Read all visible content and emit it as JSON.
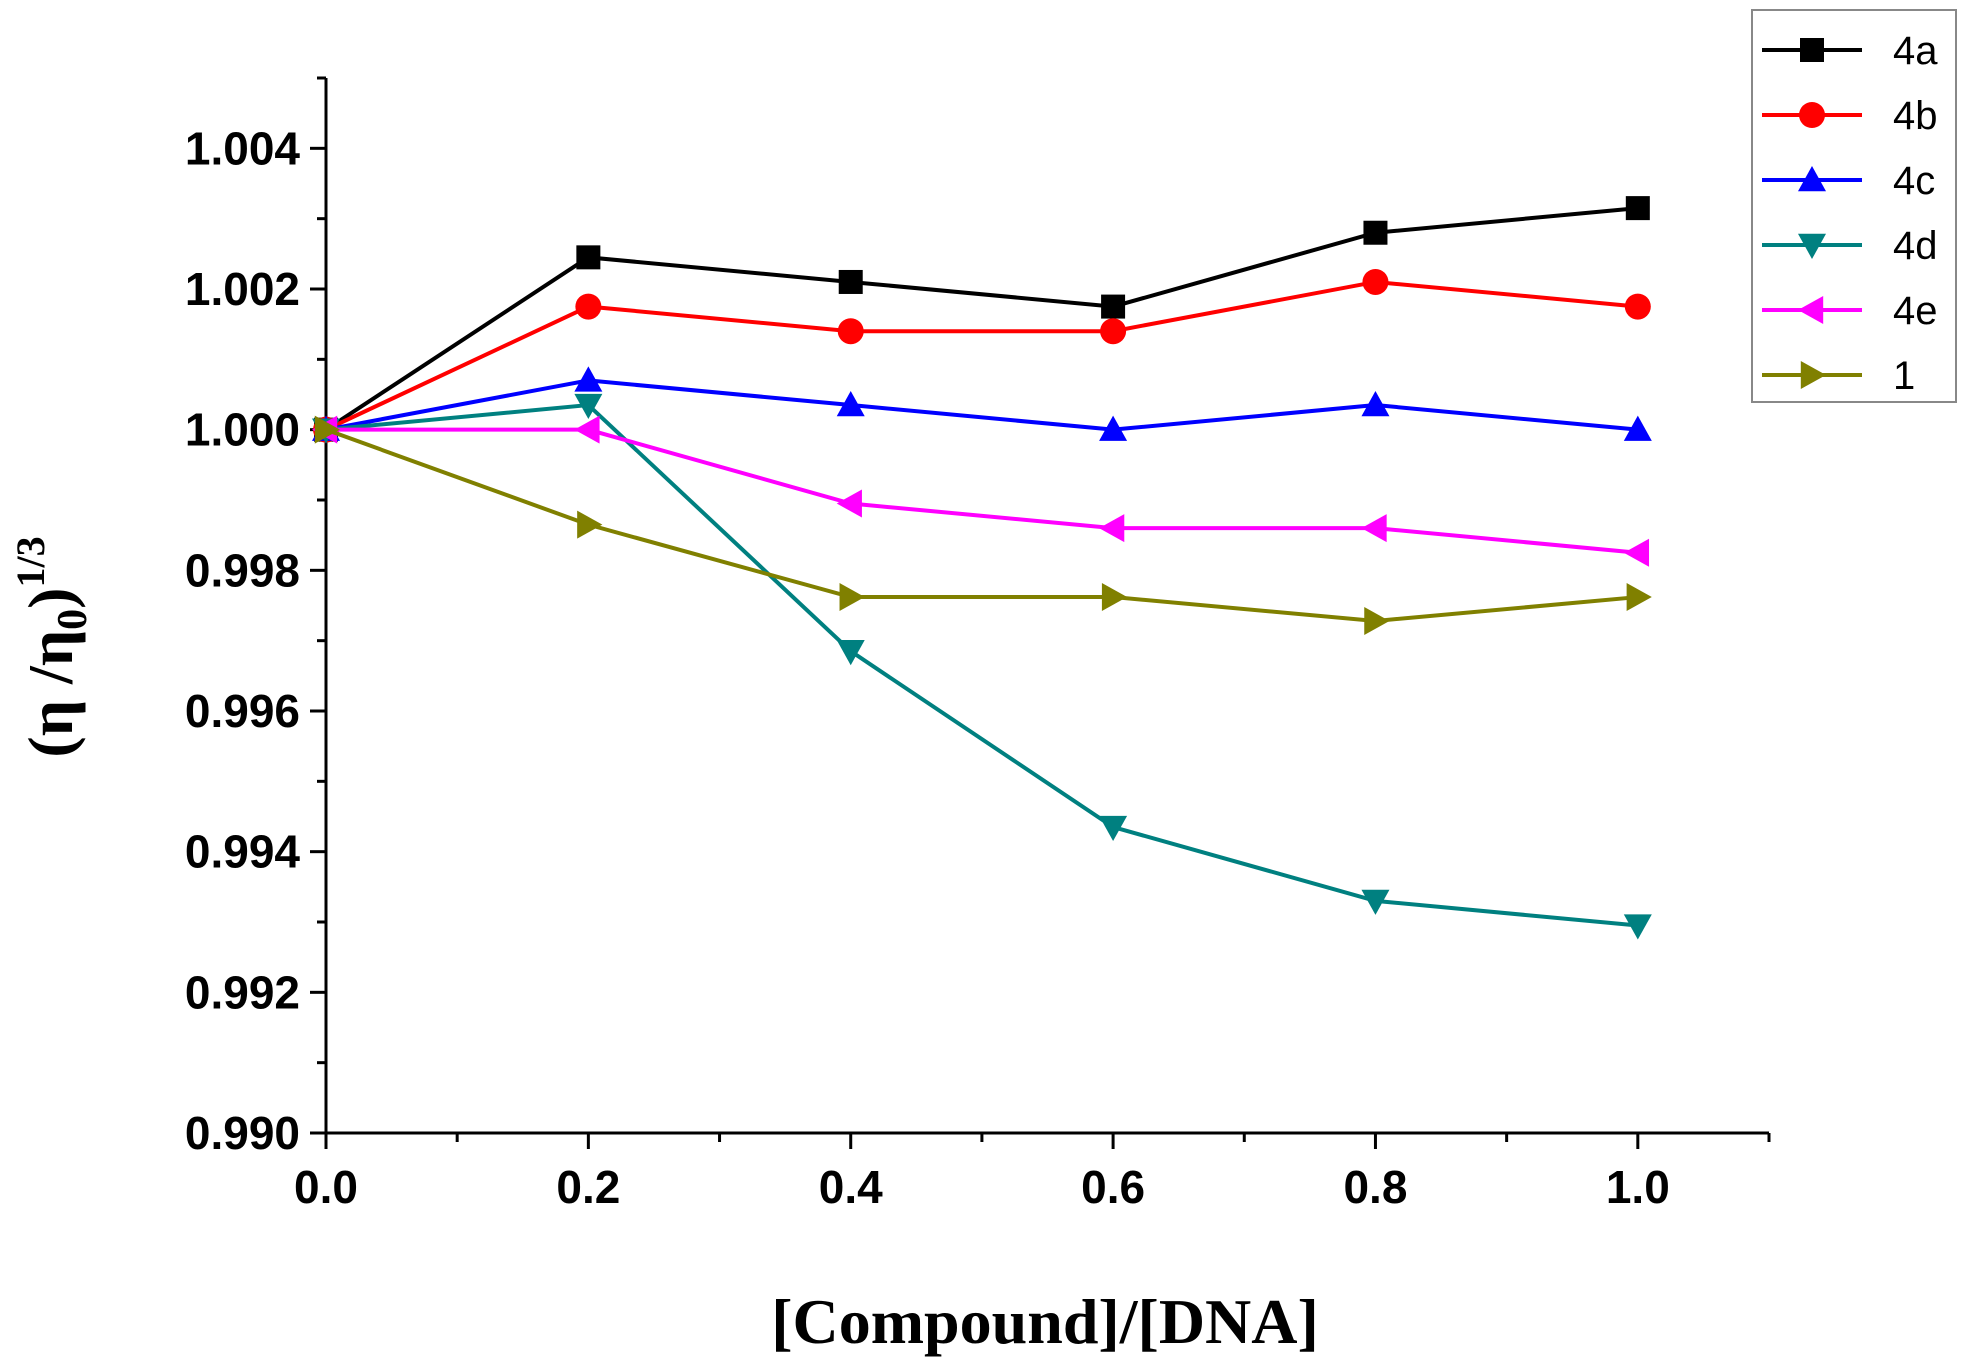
{
  "chart_data": {
    "type": "line",
    "title": "",
    "xlabel": "[Compound]/[DNA]",
    "ylabel": {
      "base": "(η /η",
      "sub": "0",
      "close": ")",
      "sup": "1/3"
    },
    "xlim": [
      0.0,
      1.1
    ],
    "ylim": [
      0.99,
      1.005
    ],
    "grid": false,
    "legend_position": "top-right",
    "x": [
      0.0,
      0.2,
      0.4,
      0.6,
      0.8,
      1.0
    ],
    "x_ticks": [
      "0.0",
      "0.2",
      "0.4",
      "0.6",
      "0.8",
      "1.0"
    ],
    "x_tick_values": [
      0.0,
      0.2,
      0.4,
      0.6,
      0.8,
      1.0
    ],
    "y_ticks": [
      "0.990",
      "0.992",
      "0.994",
      "0.996",
      "0.998",
      "1.000",
      "1.002",
      "1.004"
    ],
    "y_tick_values": [
      0.99,
      0.992,
      0.994,
      0.996,
      0.998,
      1.0,
      1.002,
      1.004
    ],
    "series": [
      {
        "name": "4a",
        "color": "#000000",
        "marker": "square",
        "values": [
          1.0,
          1.00245,
          1.0021,
          1.00175,
          1.0028,
          1.00315
        ]
      },
      {
        "name": "4b",
        "color": "#ff0000",
        "marker": "circle",
        "values": [
          1.0,
          1.00175,
          1.0014,
          1.0014,
          1.0021,
          1.00175
        ]
      },
      {
        "name": "4c",
        "color": "#0000ff",
        "marker": "triangle-up",
        "values": [
          1.0,
          1.0007,
          1.00035,
          1.0,
          1.00035,
          1.0
        ]
      },
      {
        "name": "4d",
        "color": "#008080",
        "marker": "triangle-down",
        "values": [
          1.0,
          1.00035,
          0.99685,
          0.99435,
          0.9933,
          0.99295
        ]
      },
      {
        "name": "4e",
        "color": "#ff00ff",
        "marker": "triangle-left",
        "values": [
          1.0,
          1.0,
          0.99895,
          0.9986,
          0.9986,
          0.99825
        ]
      },
      {
        "name": "1",
        "color": "#808000",
        "marker": "triangle-right",
        "values": [
          1.0,
          0.99865,
          0.99762,
          0.99762,
          0.99728,
          0.99762
        ]
      }
    ]
  }
}
